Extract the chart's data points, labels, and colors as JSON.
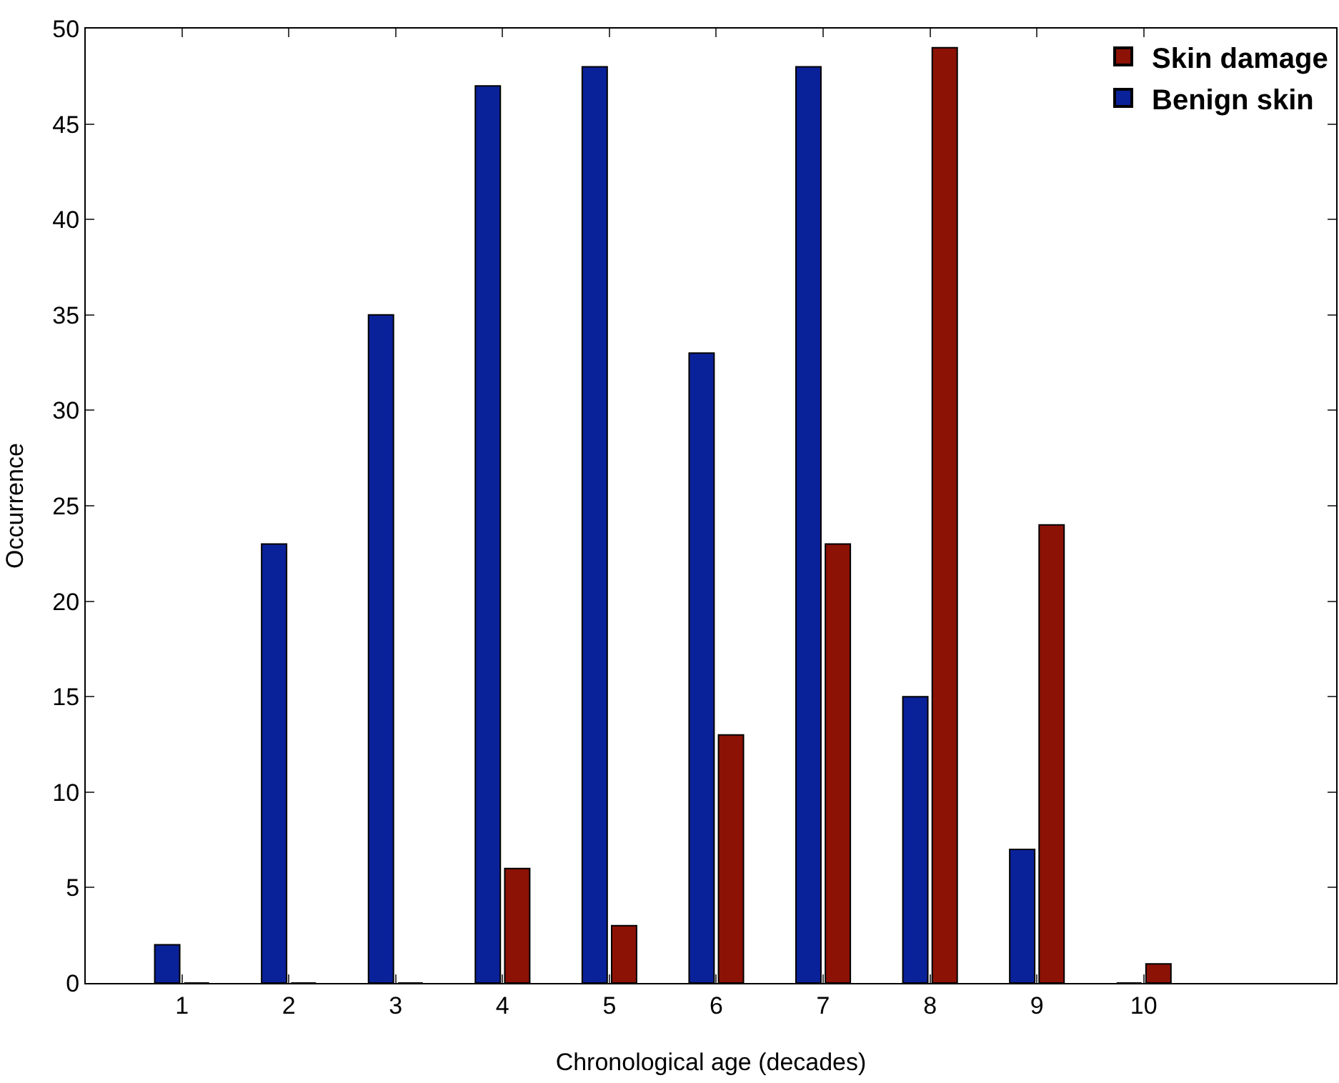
{
  "chart_data": {
    "type": "bar",
    "xlabel": "Chronological age (decades)",
    "ylabel": "Occurrence",
    "x": [
      1,
      2,
      3,
      4,
      5,
      6,
      7,
      8,
      9,
      10
    ],
    "series": [
      {
        "name": "Benign skin",
        "color": "#0a2299",
        "values": [
          2,
          23,
          35,
          47,
          48,
          33,
          48,
          15,
          7,
          0
        ]
      },
      {
        "name": "Skin damage",
        "color": "#8c1206",
        "values": [
          0,
          0,
          0,
          6,
          3,
          13,
          23,
          49,
          24,
          1
        ]
      }
    ],
    "xlim": [
      0.1,
      11.8
    ],
    "xticks": [
      1,
      2,
      3,
      4,
      5,
      6,
      7,
      8,
      9,
      10
    ],
    "ylim": [
      0,
      50
    ],
    "yticks": [
      0,
      5,
      10,
      15,
      20,
      25,
      30,
      35,
      40,
      45,
      50
    ],
    "grid": false,
    "legend": "top right"
  }
}
